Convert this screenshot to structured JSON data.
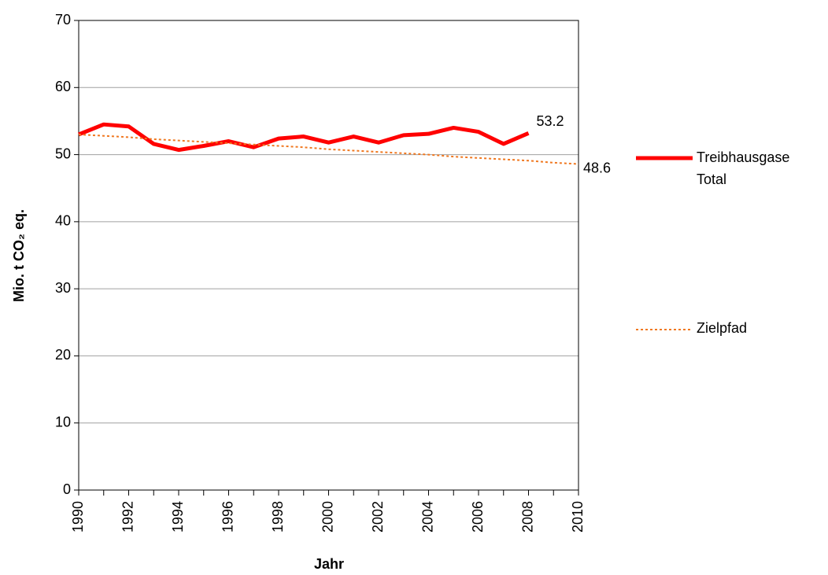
{
  "chart_data": {
    "type": "line",
    "x": [
      1990,
      1991,
      1992,
      1993,
      1994,
      1995,
      1996,
      1997,
      1998,
      1999,
      2000,
      2001,
      2002,
      2003,
      2004,
      2005,
      2006,
      2007,
      2008,
      2009,
      2010
    ],
    "series": [
      {
        "name": "Treibhausgase Total",
        "color": "#ff0000",
        "style": "solid",
        "values": [
          53.0,
          54.5,
          54.2,
          51.6,
          50.7,
          51.3,
          52.0,
          51.1,
          52.4,
          52.7,
          51.8,
          52.7,
          51.8,
          52.9,
          53.1,
          54.0,
          53.4,
          51.6,
          53.2,
          null,
          null
        ]
      },
      {
        "name": "Zielpfad",
        "color": "#f07820",
        "style": "dotted",
        "values": [
          53.0,
          52.8,
          52.6,
          52.3,
          52.1,
          51.9,
          51.7,
          51.5,
          51.3,
          51.1,
          50.8,
          50.6,
          50.4,
          50.2,
          50.0,
          49.7,
          49.5,
          49.3,
          49.1,
          48.8,
          48.6
        ]
      }
    ],
    "xlabel": "Jahr",
    "ylabel": "Mio. t CO₂ eq.",
    "xlim": [
      1990,
      2010
    ],
    "xticks": [
      1990,
      1992,
      1994,
      1996,
      1998,
      2000,
      2002,
      2004,
      2006,
      2008,
      2010
    ],
    "ylim": [
      0,
      70
    ],
    "yticks": [
      0,
      10,
      20,
      30,
      40,
      50,
      60,
      70
    ],
    "grid": true
  }
}
